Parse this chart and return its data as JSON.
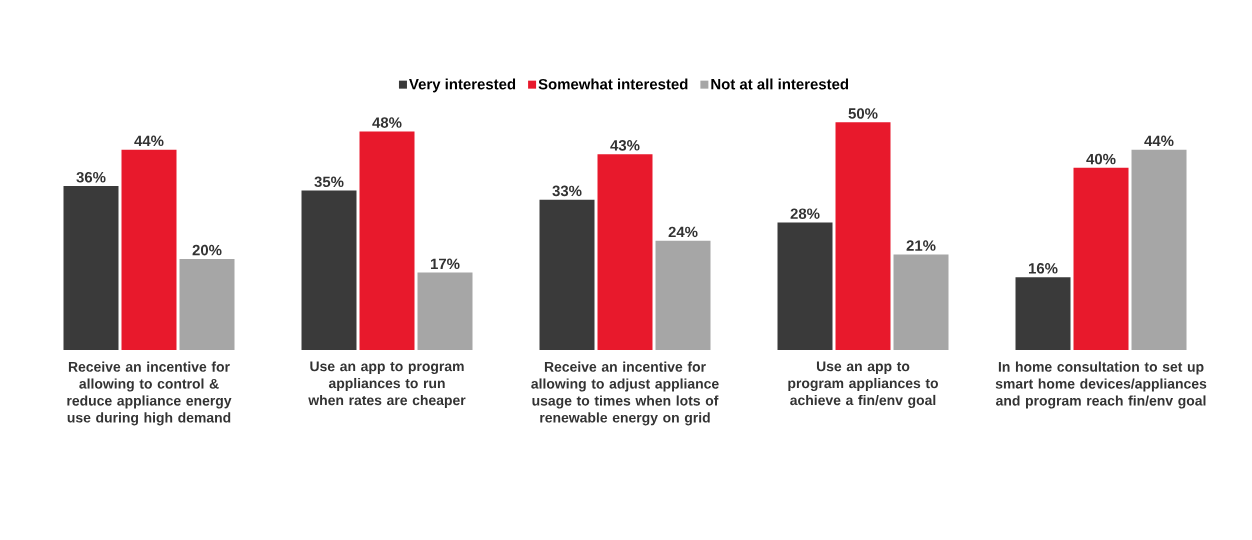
{
  "chart_data": {
    "type": "bar",
    "categories": [
      "Receive an incentive for allowing to control & reduce appliance energy use during high demand",
      "Use an app to program appliances to run when rates are cheaper",
      "Receive an incentive for allowing to adjust appliance usage to times when lots of renewable energy on grid",
      "Use an app to program appliances to achieve a fin/env goal",
      "In home consultation to set up smart home devices/appliances and program reach fin/env goal"
    ],
    "series": [
      {
        "name": "Very interested",
        "color": "#3a3a3a",
        "values": [
          36,
          35,
          33,
          28,
          16
        ],
        "value_labels": [
          "36%",
          "35%",
          "33%",
          "28%",
          "16%"
        ]
      },
      {
        "name": "Somewhat interested",
        "color": "#e8192c",
        "values": [
          44,
          48,
          43,
          50,
          40
        ],
        "value_labels": [
          "44%",
          "48%",
          "43%",
          "50%",
          "40%"
        ]
      },
      {
        "name": "Not at all interested",
        "color": "#a6a6a6",
        "values": [
          20,
          17,
          24,
          21,
          44
        ],
        "value_labels": [
          "20%",
          "17%",
          "24%",
          "21%",
          "44%"
        ]
      }
    ],
    "legend": "top"
  }
}
